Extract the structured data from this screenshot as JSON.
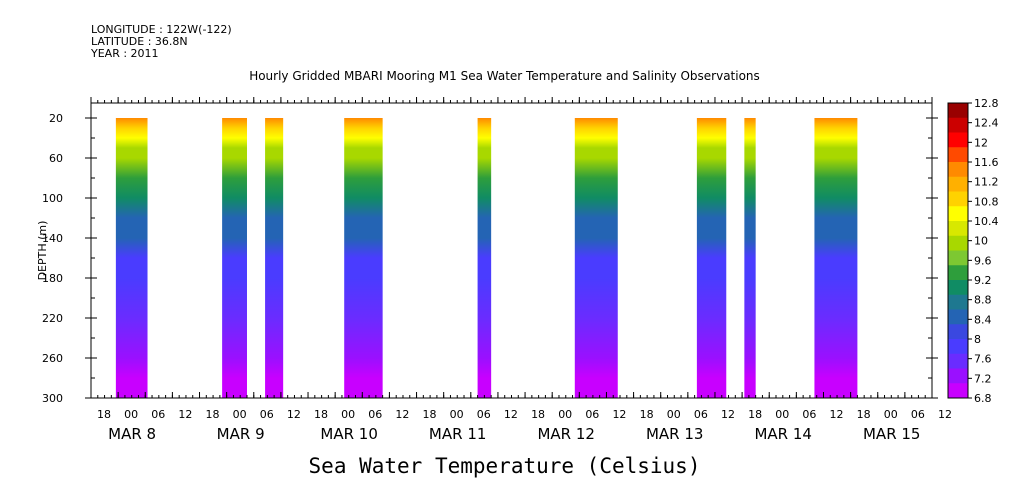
{
  "header": {
    "longitude": "LONGITUDE : 122W(-122)",
    "latitude": "LATITUDE : 36.8N",
    "year": "YEAR : 2011"
  },
  "chart_data": {
    "type": "heatmap",
    "title": "Hourly Gridded MBARI Mooring M1 Sea Water Temperature and Salinity Observations",
    "xlabel": "Sea Water Temperature (Celsius)",
    "ylabel": "DEPTH (m)",
    "x_units": "hours since MAR 7 18:00",
    "xlim": [
      0,
      186
    ],
    "ylim": [
      300,
      5
    ],
    "y_ticks": [
      20,
      60,
      100,
      140,
      180,
      220,
      260,
      300
    ],
    "x_hour_ticks": [
      "18",
      "00",
      "06",
      "12",
      "18",
      "00",
      "06",
      "12",
      "18",
      "00",
      "06",
      "12",
      "18",
      "00",
      "06",
      "12",
      "18",
      "00",
      "06",
      "12",
      "18",
      "00",
      "06",
      "12",
      "18",
      "00",
      "06",
      "12",
      "18",
      "00",
      "06",
      "12"
    ],
    "x_day_labels": [
      {
        "label": "MAR  8",
        "hour": 6
      },
      {
        "label": "MAR  9",
        "hour": 30
      },
      {
        "label": "MAR 10",
        "hour": 54
      },
      {
        "label": "MAR 11",
        "hour": 78
      },
      {
        "label": "MAR 12",
        "hour": 102
      },
      {
        "label": "MAR 13",
        "hour": 126
      },
      {
        "label": "MAR 14",
        "hour": 150
      },
      {
        "label": "MAR 15",
        "hour": 174
      }
    ],
    "data_segments": [
      {
        "start": 5.5,
        "end": 12.5
      },
      {
        "start": 29,
        "end": 34.5
      },
      {
        "start": 38.5,
        "end": 42.5
      },
      {
        "start": 56,
        "end": 64.5
      },
      {
        "start": 85.5,
        "end": 88.5
      },
      {
        "start": 107,
        "end": 116.5
      },
      {
        "start": 134,
        "end": 140.5
      },
      {
        "start": 144.5,
        "end": 147
      },
      {
        "start": 160,
        "end": 169.5
      }
    ],
    "depth_profile": [
      {
        "depth": 20,
        "temp": 11.6
      },
      {
        "depth": 30,
        "temp": 11.0
      },
      {
        "depth": 40,
        "temp": 10.6
      },
      {
        "depth": 50,
        "temp": 10.1
      },
      {
        "depth": 60,
        "temp": 9.8
      },
      {
        "depth": 80,
        "temp": 9.3
      },
      {
        "depth": 100,
        "temp": 8.9
      },
      {
        "depth": 120,
        "temp": 8.6
      },
      {
        "depth": 140,
        "temp": 8.3
      },
      {
        "depth": 160,
        "temp": 8.0
      },
      {
        "depth": 180,
        "temp": 7.8
      },
      {
        "depth": 220,
        "temp": 7.6
      },
      {
        "depth": 260,
        "temp": 7.4
      },
      {
        "depth": 280,
        "temp": 7.1
      },
      {
        "depth": 300,
        "temp": 6.9
      }
    ],
    "colorbar": {
      "labels": [
        "12.8",
        "12.4",
        "12",
        "11.6",
        "11.2",
        "10.8",
        "10.4",
        "10",
        "9.6",
        "9.2",
        "8.8",
        "8.4",
        "8",
        "7.6",
        "7.2",
        "6.8"
      ],
      "colors": [
        "#990000",
        "#cc0000",
        "#ff0000",
        "#ff4a00",
        "#ff8a00",
        "#ffb000",
        "#ffd200",
        "#ffff00",
        "#d8e800",
        "#a8d800",
        "#7dc832",
        "#2e9e3c",
        "#108c64",
        "#1e7890",
        "#2464b4",
        "#3a48e0",
        "#4a3cff",
        "#6a2cff",
        "#9a10ff",
        "#c800ff"
      ]
    }
  }
}
